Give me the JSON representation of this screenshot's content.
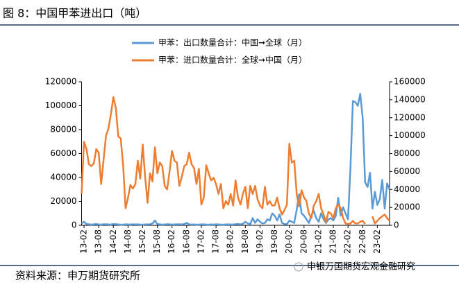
{
  "chart_data": {
    "type": "line",
    "title": "图 8：中国甲苯进出口（吨）",
    "source": "资料来源：申万期货研究所",
    "watermark": "申银万国期货宏观金融研究",
    "categories": [
      null,
      "13-02",
      null,
      null,
      null,
      null,
      null,
      "13-08",
      null,
      null,
      null,
      null,
      null,
      "14-02",
      null,
      null,
      null,
      null,
      null,
      "14-08",
      null,
      null,
      null,
      null,
      null,
      "15-02",
      null,
      null,
      null,
      null,
      null,
      "15-08",
      null,
      null,
      null,
      null,
      null,
      "16-02",
      null,
      null,
      null,
      null,
      null,
      "16-08",
      null,
      null,
      null,
      null,
      null,
      "17-02",
      null,
      null,
      null,
      null,
      null,
      "17-08",
      null,
      null,
      null,
      null,
      null,
      "18-02",
      null,
      null,
      null,
      null,
      null,
      "18-08",
      null,
      null,
      null,
      null,
      null,
      "19-02",
      null,
      null,
      null,
      null,
      null,
      "19-08",
      null,
      null,
      null,
      null,
      null,
      "20-02",
      null,
      null,
      null,
      null,
      null,
      "20-08",
      null,
      null,
      null,
      null,
      null,
      "21-02",
      null,
      null,
      null,
      null,
      null,
      "21-08",
      null,
      null,
      null,
      null,
      null,
      "22-02",
      null,
      null,
      null,
      null,
      null,
      "22-08",
      null,
      null,
      null,
      null,
      null,
      "23-02",
      null,
      null,
      null,
      null,
      null
    ],
    "series": [
      {
        "name": "甲苯：出口数量合计：中国➞全球（月）",
        "color": "#5b9bd5",
        "axis": "y",
        "values": [
          1500,
          3000,
          1000,
          800,
          600,
          800,
          1000,
          700,
          600,
          900,
          800,
          700,
          600,
          1000,
          900,
          700,
          500,
          600,
          800,
          700,
          600,
          900,
          700,
          800,
          600,
          500,
          700,
          800,
          900,
          1500,
          4000,
          1000,
          800,
          600,
          700,
          900,
          800,
          600,
          700,
          800,
          900,
          700,
          1000,
          2000,
          800,
          600,
          700,
          500,
          600,
          700,
          800,
          600,
          500,
          700,
          600,
          800,
          700,
          600,
          500,
          700,
          800,
          600,
          700,
          900,
          1000,
          800,
          1200,
          3000,
          1500,
          1000,
          6000,
          2000,
          5000,
          3000,
          1500,
          2000,
          5000,
          4000,
          10000,
          8000,
          4000,
          9000,
          2000,
          1000,
          1000,
          4000,
          3000,
          2000,
          13000,
          26000,
          10000,
          8000,
          5000,
          2000,
          8000,
          12000,
          6000,
          3000,
          10000,
          5000,
          2000,
          5000,
          6000,
          4000,
          8000,
          23000,
          8000,
          15000,
          10000,
          5000,
          48000,
          104000,
          103000,
          100000,
          110000,
          90000,
          36000,
          32000,
          44000,
          14000,
          28000,
          17000,
          22000,
          38000,
          14000,
          35000,
          30000
        ]
      },
      {
        "name": "甲苯：进口数量合计：全球➞中国（月）",
        "color": "#ed7d31",
        "axis": "y2",
        "values": [
          35000,
          93000,
          85000,
          68000,
          66000,
          69000,
          85000,
          81000,
          46000,
          73000,
          100000,
          108000,
          124000,
          143000,
          131000,
          99000,
          97000,
          67000,
          19000,
          31000,
          45000,
          41000,
          46000,
          72000,
          52000,
          90000,
          54000,
          25000,
          58000,
          49000,
          87000,
          58000,
          70000,
          66000,
          44000,
          40000,
          60000,
          83000,
          72000,
          70000,
          44000,
          54000,
          66000,
          68000,
          81000,
          68000,
          64000,
          46000,
          63000,
          23000,
          31000,
          67000,
          58000,
          50000,
          53000,
          46000,
          35000,
          46000,
          19000,
          27000,
          23000,
          35000,
          22000,
          50000,
          31000,
          23000,
          35000,
          43000,
          19000,
          44000,
          35000,
          44000,
          29000,
          22000,
          19000,
          43000,
          23000,
          27000,
          22000,
          22000,
          31000,
          19000,
          12000,
          17000,
          23000,
          91000,
          70000,
          72000,
          35000,
          21000,
          39000,
          31000,
          27000,
          13000,
          8000,
          22000,
          27000,
          35000,
          19000,
          12000,
          4000,
          15000,
          13000,
          8000,
          19000,
          23000,
          19000,
          8000,
          2000,
          1500,
          2000,
          5000,
          2000,
          2000,
          4000,
          5000,
          1500,
          null,
          null,
          10000,
          2000,
          5000,
          8000,
          10000,
          12000,
          8000,
          5000
        ]
      }
    ],
    "ylim": [
      0,
      120000
    ],
    "yticks": [
      0,
      20000,
      40000,
      60000,
      80000,
      100000,
      120000
    ],
    "y2lim": [
      0,
      160000
    ],
    "y2ticks": [
      0,
      20000,
      40000,
      60000,
      80000,
      100000,
      120000,
      140000,
      160000
    ]
  }
}
